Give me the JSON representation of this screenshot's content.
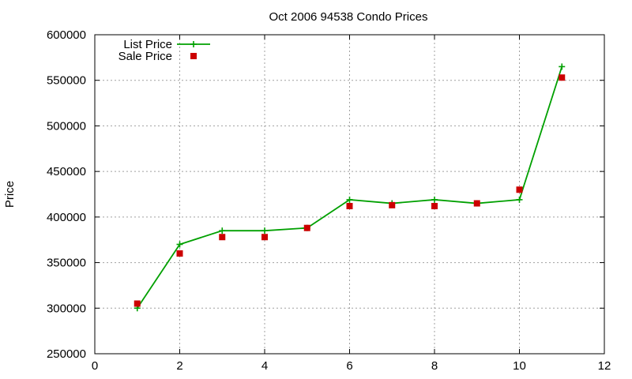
{
  "chart_data": {
    "type": "line",
    "title": "Oct 2006 94538 Condo Prices",
    "xlabel": "",
    "ylabel": "Price",
    "xlim": [
      0,
      12
    ],
    "ylim": [
      250000,
      600000
    ],
    "xticks": [
      0,
      2,
      4,
      6,
      8,
      10,
      12
    ],
    "yticks": [
      250000,
      300000,
      350000,
      400000,
      450000,
      500000,
      550000,
      600000
    ],
    "grid": true,
    "legend_position": "top-left",
    "series": [
      {
        "name": "List Price",
        "style": "line-plus",
        "color": "#00a000",
        "x": [
          1,
          2,
          3,
          4,
          5,
          6,
          7,
          8,
          9,
          10,
          11
        ],
        "y": [
          300000,
          370000,
          385000,
          385000,
          388000,
          419000,
          415000,
          419000,
          415000,
          419000,
          565000
        ]
      },
      {
        "name": "Sale Price",
        "style": "square",
        "color": "#cc0000",
        "x": [
          1,
          2,
          3,
          4,
          5,
          6,
          7,
          8,
          9,
          10,
          11
        ],
        "y": [
          305000,
          360000,
          378000,
          378000,
          388000,
          412000,
          413000,
          412000,
          415000,
          430000,
          553000
        ]
      }
    ]
  }
}
